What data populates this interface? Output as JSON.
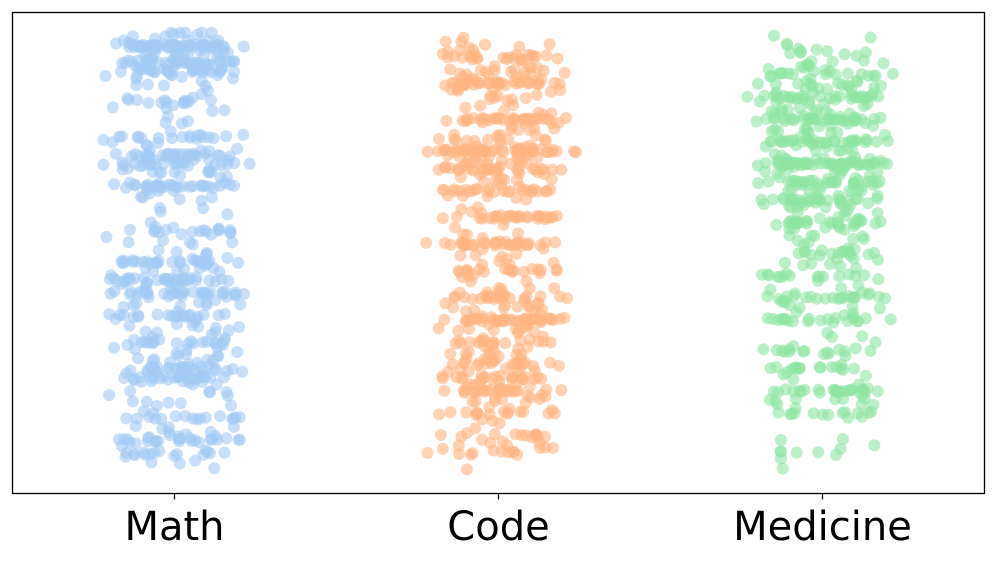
{
  "chart_data": {
    "type": "scatter",
    "subtype": "strip plot (jittered)",
    "title": "",
    "xlabel": "",
    "ylabel": "",
    "categories": [
      "Math",
      "Code",
      "Medicine"
    ],
    "y_axis": "no tick labels shown",
    "grid": false,
    "legend": "none",
    "point_alpha": 0.6,
    "series": [
      {
        "category": "Math",
        "color": "#a1c9f4",
        "approx_points": 700,
        "distribution": "Y levels spread across the full range with dense horizontal bands near the top (around 0.96, 0.91, 0.82), a cluster at 0.60–0.72, a dense mass around 0.35–0.45 and sparse points to the bottom.",
        "bands": [
          [
            0.965,
            0.14
          ],
          [
            0.93,
            0.08
          ],
          [
            0.91,
            0.07
          ],
          [
            0.84,
            0.04
          ],
          [
            0.76,
            0.05
          ],
          [
            0.72,
            0.06
          ],
          [
            0.7,
            0.06
          ],
          [
            0.65,
            0.09
          ],
          [
            0.55,
            0.05
          ],
          [
            0.48,
            0.06
          ],
          [
            0.44,
            0.08
          ],
          [
            0.41,
            0.07
          ],
          [
            0.36,
            0.06
          ],
          [
            0.3,
            0.06
          ],
          [
            0.24,
            0.06
          ],
          [
            0.22,
            0.08
          ],
          [
            0.13,
            0.05
          ],
          [
            0.08,
            0.05
          ],
          [
            0.05,
            0.04
          ]
        ]
      },
      {
        "category": "Code",
        "color": "#ffb482",
        "approx_points": 700,
        "distribution": "Dense from the top to the middle, thinning downwards, with horizontal bands near 0.73, 0.35 and 0.19, plus a sparse lower tail.",
        "bands": [
          [
            0.94,
            0.05
          ],
          [
            0.88,
            0.1
          ],
          [
            0.8,
            0.07
          ],
          [
            0.73,
            0.12
          ],
          [
            0.69,
            0.05
          ],
          [
            0.64,
            0.05
          ],
          [
            0.58,
            0.05
          ],
          [
            0.52,
            0.06
          ],
          [
            0.46,
            0.04
          ],
          [
            0.4,
            0.05
          ],
          [
            0.35,
            0.08
          ],
          [
            0.3,
            0.04
          ],
          [
            0.25,
            0.04
          ],
          [
            0.22,
            0.04
          ],
          [
            0.19,
            0.05
          ],
          [
            0.14,
            0.03
          ],
          [
            0.09,
            0.03
          ],
          [
            0.05,
            0.02
          ]
        ]
      },
      {
        "category": "Medicine",
        "color": "#8de5a1",
        "approx_points": 600,
        "distribution": "Dense mass in the upper half between about 0.85 and 0.65 with a band near 0.70, a second band near 0.57, thinning downwards, with a horizontal band near 0.19 and sparse points near 0.14 and 0.05.",
        "bands": [
          [
            0.95,
            0.03
          ],
          [
            0.9,
            0.06
          ],
          [
            0.85,
            0.09
          ],
          [
            0.8,
            0.1
          ],
          [
            0.75,
            0.1
          ],
          [
            0.7,
            0.12
          ],
          [
            0.66,
            0.08
          ],
          [
            0.62,
            0.06
          ],
          [
            0.57,
            0.09
          ],
          [
            0.5,
            0.05
          ],
          [
            0.45,
            0.04
          ],
          [
            0.4,
            0.05
          ],
          [
            0.35,
            0.05
          ],
          [
            0.28,
            0.04
          ],
          [
            0.24,
            0.03
          ],
          [
            0.19,
            0.07
          ],
          [
            0.14,
            0.03
          ],
          [
            0.05,
            0.02
          ]
        ]
      }
    ]
  }
}
